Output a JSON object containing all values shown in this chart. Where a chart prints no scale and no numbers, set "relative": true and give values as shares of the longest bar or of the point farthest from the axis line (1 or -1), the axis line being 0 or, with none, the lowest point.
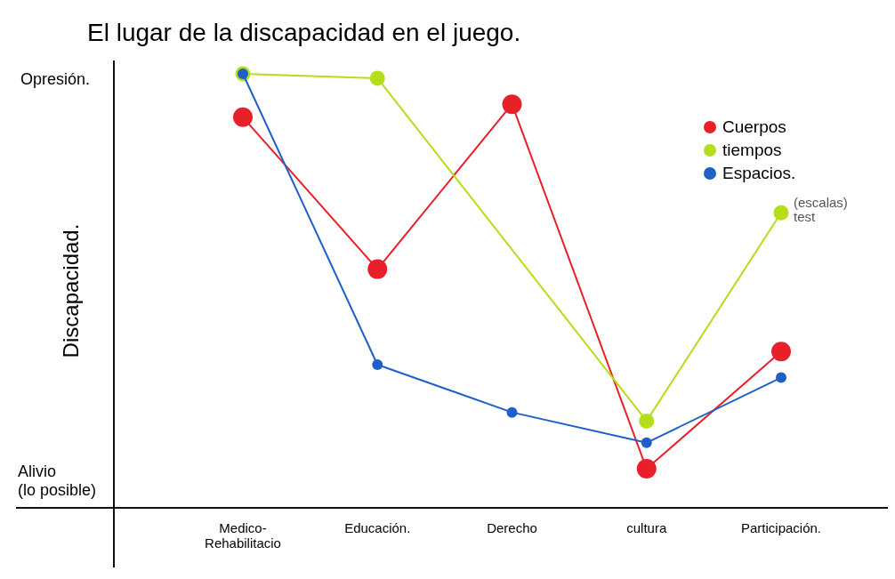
{
  "chart_data": {
    "type": "line",
    "title": "El lugar de la discapacidad en el juego.",
    "ylabel": "Discapacidad.",
    "relative": true,
    "categories": [
      "Medico-\nRehabilitacio",
      "Educación.",
      "Derecho",
      "cultura",
      "Participación."
    ],
    "series": [
      {
        "name": "Cuerpos",
        "color": "#e8202a",
        "values": [
          0.9,
          0.55,
          0.93,
          0.09,
          0.36
        ]
      },
      {
        "name": "tiempos",
        "color": "#b5de1a",
        "values": [
          1.0,
          0.99,
          null,
          0.2,
          0.68
        ]
      },
      {
        "name": "Espacios.",
        "color": "#1f5fc8",
        "values": [
          1,
          0.33,
          0.22,
          0.15,
          0.3
        ]
      }
    ],
    "annotations": [
      "Opresión.",
      "Alivio (lo posible)",
      {
        "text": "(escalas) test",
        "x": "Participación.",
        "y": 0.68
      }
    ],
    "legend": "top right",
    "marker": "circle",
    "line_style": "solid",
    "grid": false
  }
}
